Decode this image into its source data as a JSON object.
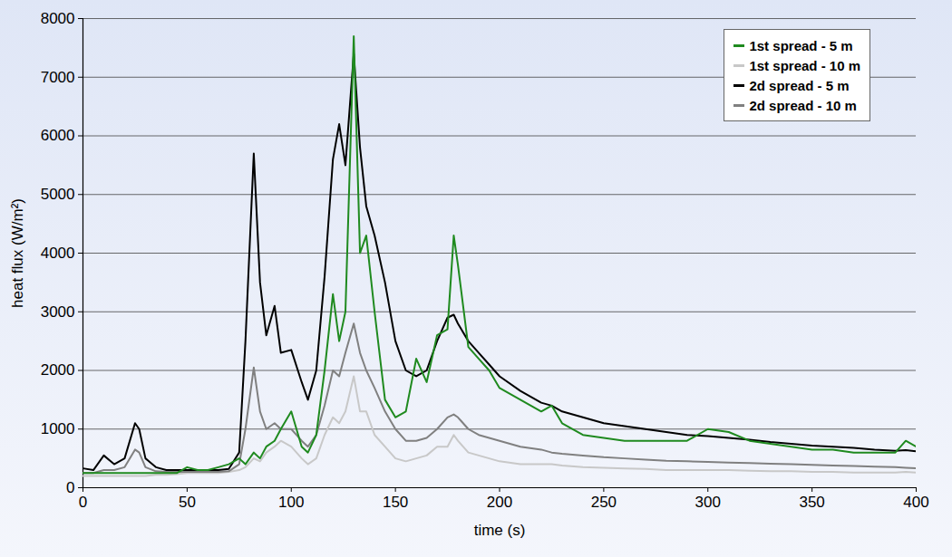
{
  "chart_data": {
    "type": "line",
    "x_label": "time (s)",
    "y_label": "heat flux (W/m²)",
    "x": [
      0,
      5,
      10,
      15,
      20,
      25,
      27,
      30,
      35,
      40,
      45,
      50,
      55,
      60,
      65,
      70,
      75,
      78,
      82,
      85,
      88,
      92,
      95,
      100,
      105,
      108,
      112,
      116,
      120,
      123,
      126,
      130,
      133,
      136,
      140,
      145,
      150,
      155,
      160,
      165,
      170,
      175,
      178,
      180,
      185,
      190,
      195,
      200,
      210,
      220,
      225,
      230,
      240,
      250,
      260,
      270,
      280,
      290,
      300,
      310,
      320,
      330,
      340,
      350,
      360,
      370,
      380,
      390,
      395,
      400
    ],
    "series": [
      {
        "name": "1st spread - 5 m",
        "color": "#1f8a1f",
        "values": [
          250,
          250,
          250,
          250,
          250,
          250,
          250,
          250,
          250,
          250,
          250,
          350,
          300,
          300,
          350,
          400,
          500,
          400,
          600,
          500,
          700,
          800,
          1000,
          1300,
          700,
          600,
          900,
          2000,
          3300,
          2500,
          3000,
          7700,
          4000,
          4300,
          3000,
          1500,
          1200,
          1300,
          2200,
          1800,
          2600,
          2700,
          4300,
          3800,
          2400,
          2200,
          2000,
          1700,
          1500,
          1300,
          1400,
          1100,
          900,
          850,
          800,
          800,
          800,
          800,
          1000,
          950,
          800,
          750,
          700,
          650,
          650,
          600,
          600,
          600,
          800,
          700
        ]
      },
      {
        "name": "1st spread - 10 m",
        "color": "#c8c8c8",
        "values": [
          200,
          200,
          200,
          200,
          200,
          200,
          200,
          200,
          220,
          220,
          230,
          250,
          250,
          250,
          250,
          270,
          300,
          350,
          500,
          450,
          600,
          700,
          800,
          700,
          500,
          400,
          500,
          900,
          1200,
          1100,
          1300,
          1900,
          1300,
          1300,
          900,
          700,
          500,
          450,
          500,
          550,
          700,
          700,
          900,
          800,
          600,
          550,
          500,
          450,
          400,
          400,
          400,
          380,
          350,
          340,
          330,
          320,
          300,
          300,
          300,
          300,
          290,
          280,
          280,
          270,
          270,
          260,
          260,
          260,
          270,
          260
        ]
      },
      {
        "name": "2d spread - 5 m",
        "color": "#000000",
        "values": [
          330,
          300,
          550,
          400,
          500,
          1100,
          1000,
          500,
          350,
          300,
          300,
          300,
          300,
          300,
          300,
          320,
          600,
          2500,
          5700,
          3500,
          2600,
          3100,
          2300,
          2350,
          1800,
          1500,
          2000,
          3600,
          5600,
          6200,
          5500,
          7400,
          5800,
          4800,
          4300,
          3500,
          2500,
          2000,
          1900,
          2000,
          2500,
          2900,
          2950,
          2800,
          2500,
          2300,
          2100,
          1900,
          1650,
          1450,
          1400,
          1300,
          1200,
          1100,
          1050,
          1000,
          950,
          900,
          880,
          850,
          820,
          780,
          750,
          720,
          700,
          680,
          650,
          630,
          640,
          620
        ]
      },
      {
        "name": "2d spread - 10 m",
        "color": "#808080",
        "values": [
          250,
          250,
          300,
          300,
          350,
          650,
          600,
          350,
          280,
          270,
          270,
          270,
          270,
          270,
          270,
          280,
          400,
          1000,
          2050,
          1300,
          1000,
          1100,
          1000,
          1000,
          800,
          700,
          900,
          1400,
          2000,
          1900,
          2300,
          2800,
          2300,
          2000,
          1700,
          1300,
          1000,
          800,
          800,
          850,
          1000,
          1200,
          1250,
          1200,
          1000,
          900,
          850,
          800,
          700,
          650,
          600,
          580,
          550,
          520,
          500,
          480,
          460,
          450,
          440,
          430,
          420,
          410,
          400,
          390,
          380,
          370,
          360,
          350,
          340,
          330
        ]
      }
    ],
    "xlim": [
      0,
      400
    ],
    "xticks": [
      0,
      50,
      100,
      150,
      200,
      250,
      300,
      350,
      400
    ],
    "ylim": [
      0,
      8000
    ],
    "yticks": [
      0,
      1000,
      2000,
      3000,
      4000,
      5000,
      6000,
      7000,
      8000
    ],
    "grid": true,
    "legend": "top-right"
  }
}
